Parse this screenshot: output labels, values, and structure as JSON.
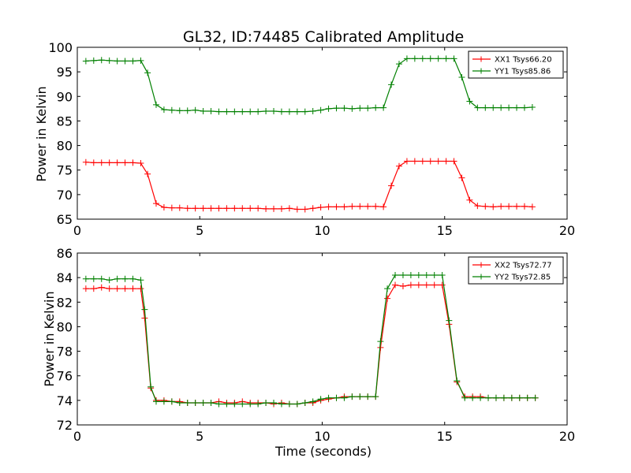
{
  "figure": {
    "title": "GL32, ID:74485 Calibrated Amplitude"
  },
  "chart_data": [
    {
      "type": "line",
      "title": "GL32, ID:74485 Calibrated Amplitude",
      "xlabel": "",
      "ylabel": "Power in Kelvin",
      "xlim": [
        0,
        20
      ],
      "ylim": [
        65,
        100
      ],
      "xticks": [
        "0",
        "5",
        "10",
        "15",
        "20"
      ],
      "yticks": [
        "65",
        "70",
        "75",
        "80",
        "85",
        "90",
        "95",
        "100"
      ],
      "xtick_values": [
        0,
        5,
        10,
        15,
        20
      ],
      "ytick_values": [
        65,
        70,
        75,
        80,
        85,
        90,
        95,
        100
      ],
      "grid": false,
      "legend_position": "top-right",
      "marker": "+",
      "x": [
        0.35,
        0.67,
        0.99,
        1.31,
        1.63,
        1.95,
        2.27,
        2.59,
        2.87,
        3.22,
        3.54,
        3.86,
        4.18,
        4.5,
        4.82,
        5.14,
        5.46,
        5.78,
        6.1,
        6.42,
        6.74,
        7.06,
        7.38,
        7.7,
        8.02,
        8.34,
        8.66,
        8.98,
        9.3,
        9.62,
        9.94,
        10.26,
        10.58,
        10.9,
        11.22,
        11.54,
        11.86,
        12.18,
        12.5,
        12.82,
        13.14,
        13.46,
        13.78,
        14.1,
        14.42,
        14.74,
        15.06,
        15.38,
        15.7,
        16.02,
        16.34,
        16.66,
        16.98,
        17.3,
        17.62,
        17.94,
        18.26,
        18.58
      ],
      "series": [
        {
          "name": "XX1 Tsys66.20",
          "color": "#ff0000",
          "values": [
            76.6,
            76.5,
            76.5,
            76.5,
            76.5,
            76.5,
            76.5,
            76.4,
            74.2,
            68.2,
            67.4,
            67.3,
            67.3,
            67.2,
            67.2,
            67.2,
            67.2,
            67.2,
            67.2,
            67.2,
            67.2,
            67.2,
            67.2,
            67.1,
            67.1,
            67.1,
            67.2,
            67.0,
            67.0,
            67.2,
            67.4,
            67.5,
            67.5,
            67.5,
            67.6,
            67.6,
            67.6,
            67.6,
            67.5,
            71.8,
            75.8,
            76.8,
            76.8,
            76.8,
            76.8,
            76.8,
            76.8,
            76.8,
            73.4,
            68.9,
            67.7,
            67.6,
            67.5,
            67.6,
            67.6,
            67.6,
            67.6,
            67.5
          ]
        },
        {
          "name": "YY1 Tsys85.86",
          "color": "#008000",
          "values": [
            97.2,
            97.3,
            97.4,
            97.3,
            97.2,
            97.2,
            97.2,
            97.3,
            94.8,
            88.3,
            87.3,
            87.2,
            87.1,
            87.1,
            87.2,
            87.0,
            87.0,
            86.9,
            86.9,
            86.9,
            86.9,
            86.9,
            86.9,
            87.0,
            87.0,
            86.9,
            86.9,
            86.9,
            86.9,
            87.0,
            87.2,
            87.5,
            87.6,
            87.6,
            87.5,
            87.6,
            87.6,
            87.7,
            87.7,
            92.4,
            96.6,
            97.7,
            97.7,
            97.7,
            97.7,
            97.7,
            97.7,
            97.7,
            93.9,
            89.0,
            87.7,
            87.7,
            87.7,
            87.7,
            87.7,
            87.7,
            87.7,
            87.8
          ]
        }
      ]
    },
    {
      "type": "line",
      "title": "",
      "xlabel": "Time (seconds)",
      "ylabel": "Power in Kelvin",
      "xlim": [
        0,
        20
      ],
      "ylim": [
        72,
        86
      ],
      "xticks": [
        "0",
        "5",
        "10",
        "15",
        "20"
      ],
      "yticks": [
        "72",
        "74",
        "76",
        "78",
        "80",
        "82",
        "84",
        "86"
      ],
      "xtick_values": [
        0,
        5,
        10,
        15,
        20
      ],
      "ytick_values": [
        72,
        74,
        76,
        78,
        80,
        82,
        84,
        86
      ],
      "grid": false,
      "legend_position": "top-right",
      "marker": "+",
      "x": [
        0.35,
        0.67,
        0.99,
        1.31,
        1.63,
        1.95,
        2.27,
        2.59,
        2.75,
        3.0,
        3.22,
        3.54,
        3.86,
        4.18,
        4.5,
        4.82,
        5.14,
        5.46,
        5.78,
        6.1,
        6.42,
        6.74,
        7.06,
        7.38,
        7.7,
        8.02,
        8.34,
        8.66,
        8.98,
        9.3,
        9.62,
        9.94,
        10.26,
        10.58,
        10.9,
        11.22,
        11.54,
        11.86,
        12.18,
        12.38,
        12.66,
        12.98,
        13.3,
        13.62,
        13.94,
        14.26,
        14.58,
        14.9,
        15.18,
        15.5,
        15.82,
        16.14,
        16.46,
        16.78,
        17.1,
        17.42,
        17.74,
        18.06,
        18.38,
        18.7
      ],
      "series": [
        {
          "name": "XX2 Tsys72.77",
          "color": "#ff0000",
          "values": [
            83.1,
            83.1,
            83.2,
            83.1,
            83.1,
            83.1,
            83.1,
            83.1,
            80.7,
            75.0,
            74.0,
            74.0,
            73.9,
            73.9,
            73.8,
            73.8,
            73.8,
            73.8,
            73.9,
            73.8,
            73.8,
            73.9,
            73.8,
            73.8,
            73.8,
            73.7,
            73.8,
            73.7,
            73.7,
            73.8,
            73.8,
            74.0,
            74.1,
            74.2,
            74.3,
            74.3,
            74.3,
            74.3,
            74.3,
            78.3,
            82.3,
            83.4,
            83.3,
            83.4,
            83.4,
            83.4,
            83.4,
            83.4,
            80.2,
            75.5,
            74.3,
            74.3,
            74.3,
            74.2,
            74.2,
            74.2,
            74.2,
            74.2,
            74.2,
            74.2
          ],
          "x_override": [
            0.35,
            0.67,
            0.99,
            1.31,
            1.63,
            1.95,
            2.27,
            2.59,
            2.75,
            3.0,
            3.22,
            3.54,
            3.86,
            4.18,
            4.5,
            4.82,
            5.14,
            5.46,
            5.78,
            6.1,
            6.42,
            6.74,
            7.06,
            7.38,
            7.7,
            8.02,
            8.34,
            8.66,
            8.98,
            9.3,
            9.62,
            9.94,
            10.26,
            10.58,
            10.9,
            11.22,
            11.54,
            11.86,
            12.18,
            12.38,
            12.66,
            12.98,
            13.3,
            13.62,
            13.94,
            14.26,
            14.58,
            14.9,
            15.18,
            15.5,
            15.82,
            16.14,
            16.46,
            16.78,
            17.1,
            17.42,
            17.74,
            18.06,
            18.38,
            18.7
          ]
        },
        {
          "name": "YY2 Tsys72.85",
          "color": "#008000",
          "values": [
            83.9,
            83.9,
            83.9,
            83.8,
            83.9,
            83.9,
            83.9,
            83.8,
            81.4,
            75.1,
            73.9,
            73.9,
            73.9,
            73.8,
            73.8,
            73.8,
            73.8,
            73.8,
            73.7,
            73.7,
            73.7,
            73.7,
            73.7,
            73.7,
            73.8,
            73.8,
            73.7,
            73.7,
            73.7,
            73.8,
            73.9,
            74.1,
            74.2,
            74.2,
            74.2,
            74.3,
            74.3,
            74.3,
            74.3,
            78.8,
            83.1,
            84.2,
            84.2,
            84.2,
            84.2,
            84.2,
            84.2,
            84.2,
            80.5,
            75.6,
            74.2,
            74.2,
            74.2,
            74.2,
            74.2,
            74.2,
            74.2,
            74.2,
            74.2,
            74.2
          ]
        }
      ]
    }
  ]
}
